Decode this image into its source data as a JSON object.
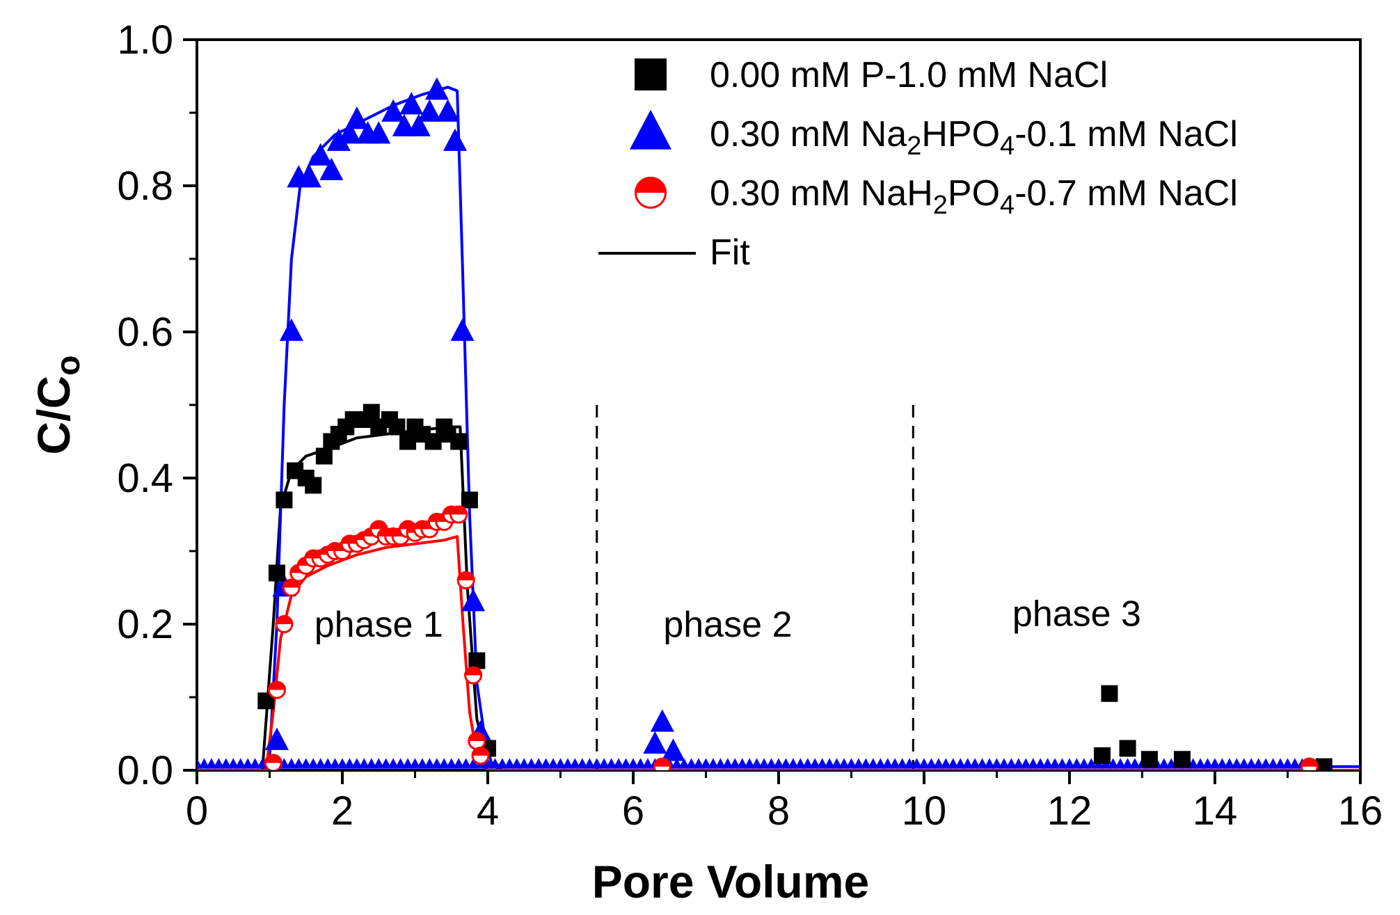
{
  "chart_data": {
    "type": "scatter",
    "title": "",
    "xlabel": "Pore Volume",
    "ylabel": "C/C",
    "ylabel_sub": "o",
    "xlim": [
      0,
      16
    ],
    "ylim": [
      0,
      1.0
    ],
    "xticks": [
      0,
      2,
      4,
      6,
      8,
      10,
      12,
      14,
      16
    ],
    "xtick_labels": [
      "0",
      "2",
      "4",
      "6",
      "8",
      "10",
      "12",
      "14",
      "16"
    ],
    "yticks": [
      0.0,
      0.2,
      0.4,
      0.6,
      0.8,
      1.0
    ],
    "ytick_labels": [
      "0.0",
      "0.2",
      "0.4",
      "0.6",
      "0.8",
      "1.0"
    ],
    "grid": false,
    "legend": {
      "position": "top-right",
      "entries": [
        {
          "key": "p0",
          "marker": "square",
          "color": "#000000",
          "parts": [
            "0.00 mM P-1.0 mM NaCl"
          ]
        },
        {
          "key": "na2",
          "marker": "triangle",
          "color": "#0000ff",
          "parts": [
            "0.30 mM Na",
            "2",
            "HPO",
            "4",
            "-0.1 mM NaCl"
          ]
        },
        {
          "key": "nah2",
          "marker": "half-circle",
          "color": "#ff0000",
          "parts": [
            "0.30 mM NaH",
            "2",
            "PO",
            "4",
            "-0.7 mM NaCl"
          ]
        },
        {
          "key": "fit",
          "marker": "line",
          "color": "#000000",
          "parts": [
            "Fit"
          ]
        }
      ]
    },
    "annotations": [
      {
        "text": "phase 1",
        "x": 2.5,
        "y": 0.2
      },
      {
        "text": "phase 2",
        "x": 7.3,
        "y": 0.2
      },
      {
        "text": "phase 3",
        "x": 12.1,
        "y": 0.215
      }
    ],
    "dividers": [
      {
        "x": 5.5,
        "y_top": 0.5,
        "style": "dashed"
      },
      {
        "x": 9.85,
        "y_top": 0.5,
        "style": "dashed"
      }
    ],
    "series": [
      {
        "name": "0.00 mM P-1.0 mM NaCl",
        "marker": "square",
        "color": "#000000",
        "points": [
          [
            0.95,
            0.095
          ],
          [
            1.1,
            0.27
          ],
          [
            1.2,
            0.37
          ],
          [
            1.35,
            0.41
          ],
          [
            1.5,
            0.4
          ],
          [
            1.6,
            0.39
          ],
          [
            1.75,
            0.43
          ],
          [
            1.85,
            0.45
          ],
          [
            1.95,
            0.46
          ],
          [
            2.05,
            0.47
          ],
          [
            2.15,
            0.48
          ],
          [
            2.3,
            0.48
          ],
          [
            2.4,
            0.49
          ],
          [
            2.5,
            0.47
          ],
          [
            2.65,
            0.48
          ],
          [
            2.75,
            0.47
          ],
          [
            2.9,
            0.45
          ],
          [
            3.0,
            0.47
          ],
          [
            3.1,
            0.46
          ],
          [
            3.25,
            0.45
          ],
          [
            3.4,
            0.47
          ],
          [
            3.45,
            0.46
          ],
          [
            3.6,
            0.45
          ],
          [
            3.75,
            0.37
          ],
          [
            3.85,
            0.15
          ],
          [
            4.0,
            0.03
          ],
          [
            12.45,
            0.02
          ],
          [
            12.55,
            0.105
          ],
          [
            12.8,
            0.03
          ],
          [
            13.1,
            0.015
          ],
          [
            13.55,
            0.015
          ],
          [
            15.5,
            0.005
          ]
        ],
        "fit": [
          [
            0,
            0
          ],
          [
            0.9,
            0
          ],
          [
            1.05,
            0.2
          ],
          [
            1.15,
            0.36
          ],
          [
            1.3,
            0.41
          ],
          [
            1.5,
            0.43
          ],
          [
            1.8,
            0.44
          ],
          [
            2.2,
            0.455
          ],
          [
            2.6,
            0.46
          ],
          [
            3.0,
            0.465
          ],
          [
            3.5,
            0.47
          ],
          [
            3.62,
            0.47
          ],
          [
            3.72,
            0.25
          ],
          [
            3.85,
            0.07
          ],
          [
            4.0,
            0.01
          ],
          [
            4.2,
            0
          ],
          [
            16,
            0
          ]
        ]
      },
      {
        "name": "0.30 mM Na2HPO4-0.1 mM NaCl",
        "marker": "triangle",
        "color": "#0000ff",
        "points": [
          [
            1.1,
            0.04
          ],
          [
            1.2,
            0.25
          ],
          [
            1.3,
            0.6
          ],
          [
            1.4,
            0.81
          ],
          [
            1.55,
            0.81
          ],
          [
            1.7,
            0.84
          ],
          [
            1.85,
            0.82
          ],
          [
            1.95,
            0.86
          ],
          [
            2.1,
            0.87
          ],
          [
            2.2,
            0.89
          ],
          [
            2.35,
            0.87
          ],
          [
            2.5,
            0.87
          ],
          [
            2.7,
            0.9
          ],
          [
            2.85,
            0.88
          ],
          [
            2.95,
            0.91
          ],
          [
            3.05,
            0.88
          ],
          [
            3.2,
            0.9
          ],
          [
            3.3,
            0.93
          ],
          [
            3.45,
            0.9
          ],
          [
            3.55,
            0.86
          ],
          [
            3.65,
            0.6
          ],
          [
            3.8,
            0.23
          ],
          [
            3.9,
            0.05
          ],
          [
            6.3,
            0.035
          ],
          [
            6.4,
            0.065
          ],
          [
            6.55,
            0.025
          ]
        ],
        "baseline": {
          "x0": 0,
          "x1": 15.2,
          "step": 0.1,
          "y": 0.008
        },
        "fit": [
          [
            0,
            0.005
          ],
          [
            0.9,
            0.005
          ],
          [
            1.0,
            0.02
          ],
          [
            1.1,
            0.2
          ],
          [
            1.2,
            0.5
          ],
          [
            1.3,
            0.7
          ],
          [
            1.42,
            0.8
          ],
          [
            1.6,
            0.84
          ],
          [
            1.9,
            0.87
          ],
          [
            2.3,
            0.89
          ],
          [
            2.7,
            0.91
          ],
          [
            3.1,
            0.925
          ],
          [
            3.45,
            0.935
          ],
          [
            3.58,
            0.93
          ],
          [
            3.65,
            0.7
          ],
          [
            3.75,
            0.35
          ],
          [
            3.85,
            0.12
          ],
          [
            3.95,
            0.05
          ],
          [
            4.05,
            0.01
          ],
          [
            4.2,
            0.005
          ],
          [
            16,
            0.005
          ]
        ]
      },
      {
        "name": "0.30 mM NaH2PO4-0.7 mM NaCl",
        "marker": "half-circle",
        "color": "#ff0000",
        "points": [
          [
            1.05,
            0.01
          ],
          [
            1.1,
            0.11
          ],
          [
            1.2,
            0.2
          ],
          [
            1.3,
            0.25
          ],
          [
            1.4,
            0.27
          ],
          [
            1.5,
            0.28
          ],
          [
            1.6,
            0.29
          ],
          [
            1.7,
            0.29
          ],
          [
            1.8,
            0.295
          ],
          [
            1.9,
            0.3
          ],
          [
            2.0,
            0.3
          ],
          [
            2.1,
            0.31
          ],
          [
            2.2,
            0.31
          ],
          [
            2.3,
            0.315
          ],
          [
            2.4,
            0.32
          ],
          [
            2.5,
            0.33
          ],
          [
            2.6,
            0.32
          ],
          [
            2.7,
            0.32
          ],
          [
            2.8,
            0.32
          ],
          [
            2.9,
            0.33
          ],
          [
            3.0,
            0.325
          ],
          [
            3.1,
            0.33
          ],
          [
            3.2,
            0.33
          ],
          [
            3.3,
            0.34
          ],
          [
            3.4,
            0.34
          ],
          [
            3.5,
            0.35
          ],
          [
            3.6,
            0.35
          ],
          [
            3.7,
            0.26
          ],
          [
            3.8,
            0.13
          ],
          [
            3.85,
            0.04
          ],
          [
            3.9,
            0.02
          ],
          [
            6.4,
            0.005
          ],
          [
            15.3,
            0.005
          ]
        ],
        "fit": [
          [
            0,
            0
          ],
          [
            0.95,
            0
          ],
          [
            1.05,
            0.08
          ],
          [
            1.15,
            0.18
          ],
          [
            1.3,
            0.24
          ],
          [
            1.5,
            0.265
          ],
          [
            1.8,
            0.28
          ],
          [
            2.2,
            0.295
          ],
          [
            2.6,
            0.305
          ],
          [
            3.0,
            0.31
          ],
          [
            3.4,
            0.315
          ],
          [
            3.58,
            0.32
          ],
          [
            3.66,
            0.2
          ],
          [
            3.75,
            0.08
          ],
          [
            3.85,
            0.02
          ],
          [
            4.0,
            0
          ],
          [
            16,
            0
          ]
        ]
      }
    ]
  }
}
